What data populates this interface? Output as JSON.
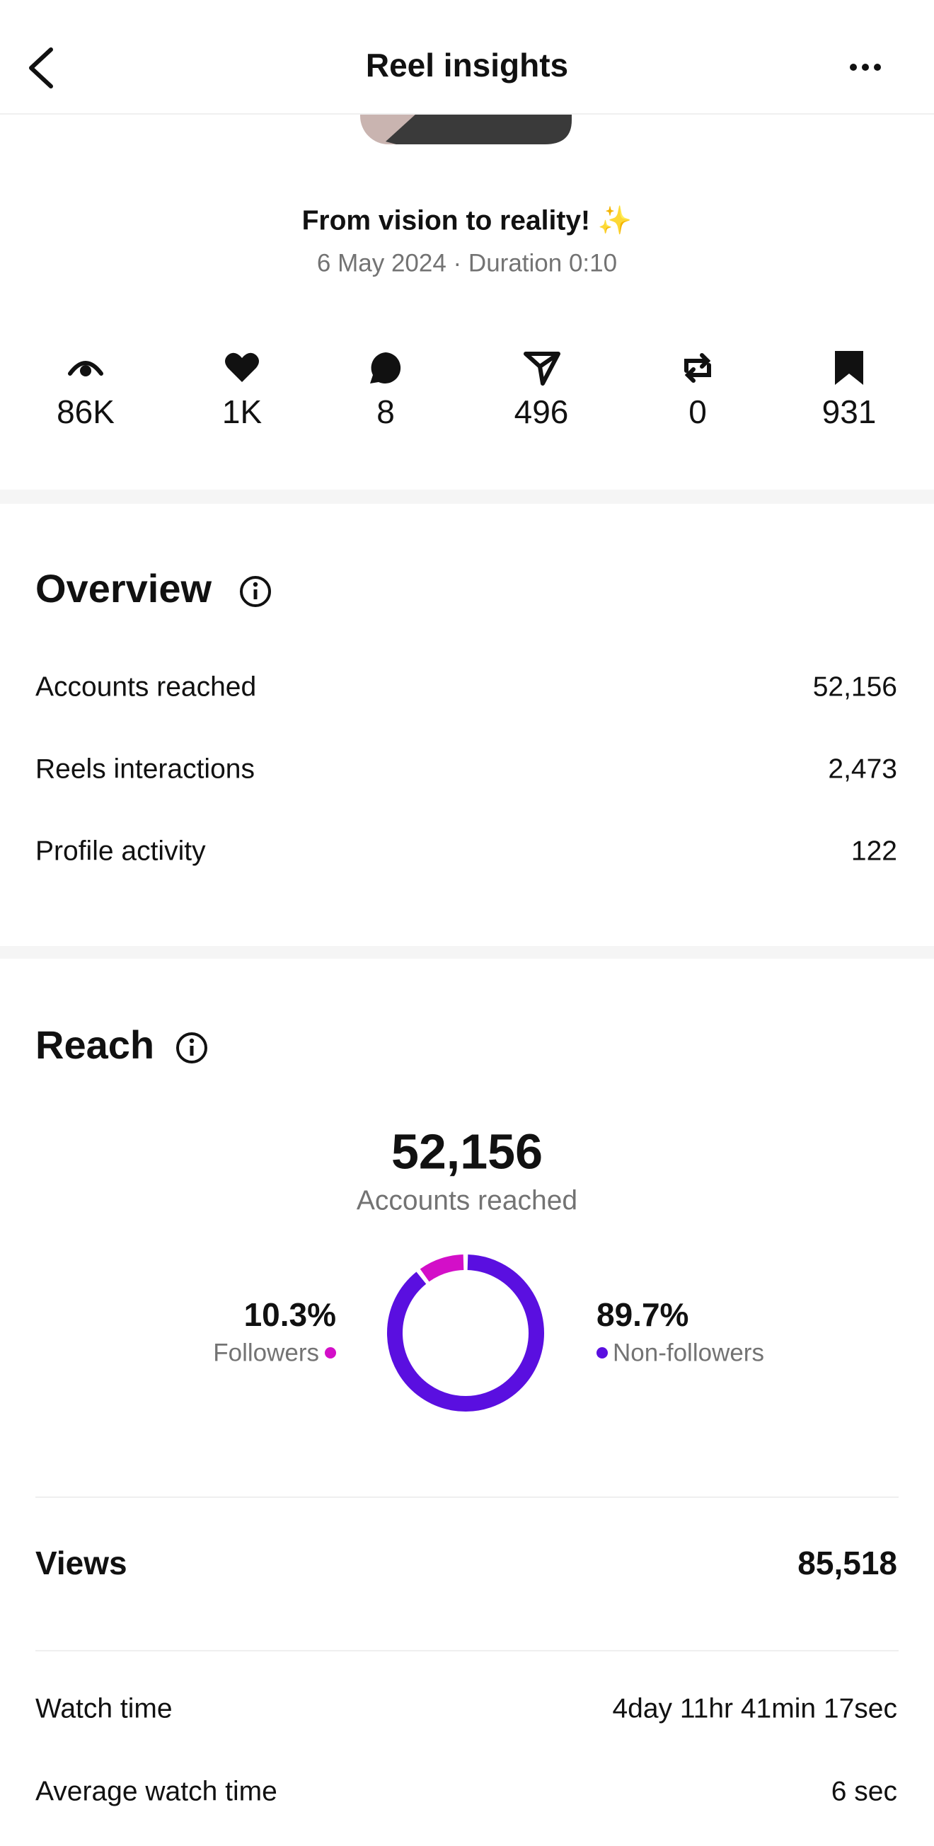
{
  "header": {
    "title": "Reel insights"
  },
  "post": {
    "caption": "From vision to reality! ✨",
    "meta": "6 May 2024 · Duration 0:10"
  },
  "stats": [
    "86K",
    "1K",
    "8",
    "496",
    "0",
    "931"
  ],
  "overview": {
    "title": "Overview",
    "rows": [
      [
        "Accounts reached",
        "52,156"
      ],
      [
        "Reels interactions",
        "2,473"
      ],
      [
        "Profile activity",
        "122"
      ]
    ]
  },
  "reach": {
    "title": "Reach",
    "total": "52,156",
    "total_label": "Accounts reached",
    "chart": {
      "type": "pie",
      "categories": [
        "Followers",
        "Non-followers"
      ],
      "values": [
        10.3,
        89.7
      ],
      "value_labels": [
        "10.3%",
        "89.7%"
      ],
      "colors": [
        "#d30fc8",
        "#5a0fe0"
      ]
    }
  },
  "views": {
    "label": "Views",
    "value": "85,518"
  },
  "watch": {
    "rows": [
      [
        "Watch time",
        "4day 11hr 41min 17sec"
      ],
      [
        "Average watch time",
        "6 sec"
      ]
    ]
  }
}
